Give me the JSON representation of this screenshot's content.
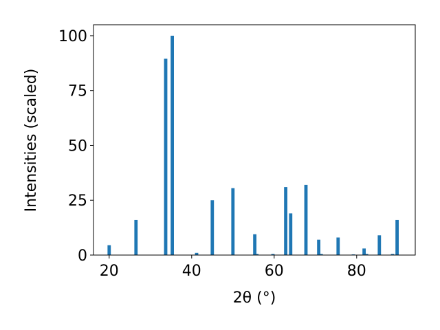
{
  "chart_data": {
    "type": "bar",
    "x": [
      20.0,
      26.5,
      33.7,
      35.3,
      41.2,
      45.0,
      50.0,
      55.3,
      55.8,
      59.7,
      62.8,
      64.0,
      67.7,
      70.8,
      71.4,
      75.5,
      79.2,
      81.8,
      82.4,
      85.5,
      88.7,
      89.8
    ],
    "values": [
      4.5,
      16,
      89.5,
      100,
      1,
      25,
      30.5,
      9.5,
      0.5,
      0.5,
      31,
      19,
      32,
      7,
      0.5,
      8,
      0.3,
      3,
      0.5,
      9,
      0.5,
      16
    ],
    "color": "#1f77b4",
    "bar_width": 0.8,
    "xlabel": "2θ (°)",
    "ylabel": "Intensities (scaled)",
    "xlim": [
      16.2,
      94.2
    ],
    "ylim": [
      0,
      105
    ],
    "xticks": [
      20,
      40,
      60,
      80
    ],
    "yticks": [
      0,
      25,
      50,
      75,
      100
    ]
  }
}
